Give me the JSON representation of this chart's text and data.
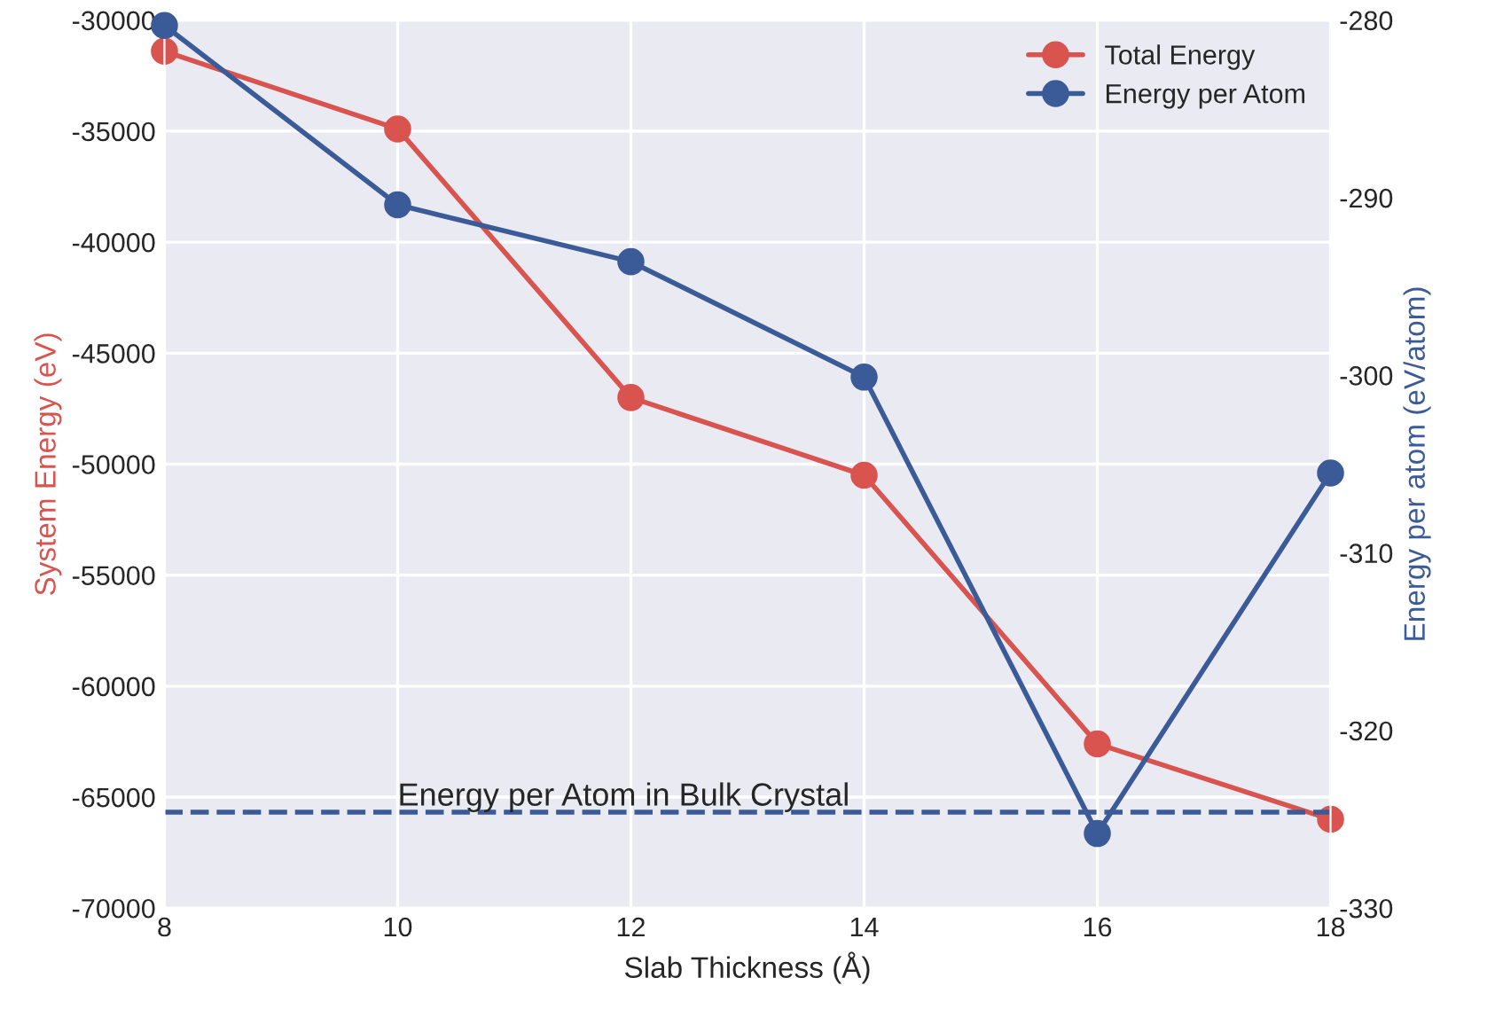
{
  "chart_data": {
    "type": "line",
    "xlabel": "Slab Thickness (Å)",
    "ylabel": "System Energy (eV)",
    "y2label": "Energy per atom (eV/atom)",
    "x": [
      8,
      10,
      12,
      14,
      16,
      18
    ],
    "series": [
      {
        "name": "Total Energy",
        "color": "#d9534f",
        "values": [
          -31400,
          -34900,
          -47000,
          -50500,
          -62600,
          -66000
        ]
      },
      {
        "name": "Energy per Atom",
        "color": "#3b5b98",
        "axis": "y2",
        "values": [
          -280.3,
          -290.4,
          -293.6,
          -300.1,
          -325.8,
          -305.5
        ]
      }
    ],
    "ref_lines": [
      {
        "axis": "y2",
        "value": -324.6,
        "label": "Energy per Atom in Bulk Crystal",
        "color": "#3b5b98",
        "line_style": "dashed"
      }
    ],
    "xlim": [
      8,
      18
    ],
    "xticks": [
      8,
      10,
      12,
      14,
      16,
      18
    ],
    "ylim": [
      -70000,
      -30000
    ],
    "yticks": [
      -70000,
      -65000,
      -60000,
      -55000,
      -50000,
      -45000,
      -40000,
      -35000,
      -30000
    ],
    "y2lim": [
      -330,
      -280
    ],
    "y2ticks": [
      -330,
      -320,
      -310,
      -300,
      -290,
      -280
    ],
    "grid": true,
    "legend": "top right",
    "marker": "circle",
    "line_style": "solid"
  }
}
